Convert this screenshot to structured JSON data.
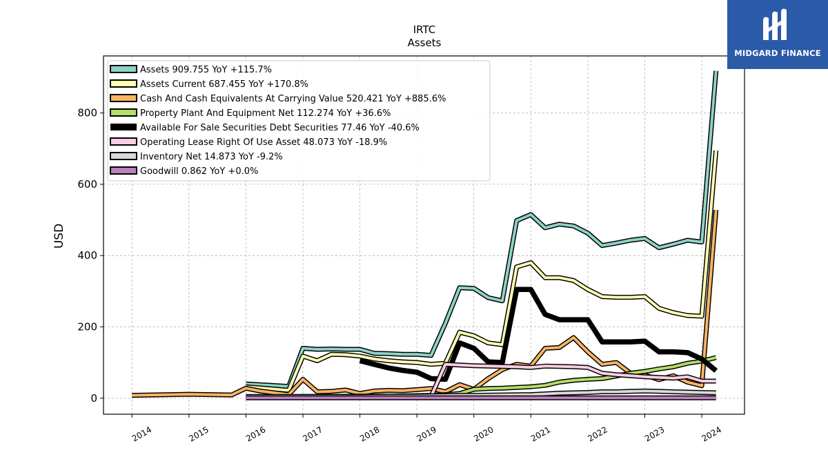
{
  "chart_data": {
    "type": "line",
    "title": "IRTC",
    "subtitle": "Assets",
    "xlabel": "",
    "ylabel": "USD",
    "xlim": [
      2013.5,
      2024.75
    ],
    "ylim": [
      -45,
      960
    ],
    "x_ticks": [
      "2014",
      "2015",
      "2016",
      "2017",
      "2018",
      "2019",
      "2020",
      "2021",
      "2022",
      "2023",
      "2024"
    ],
    "y_ticks": [
      0,
      200,
      400,
      600,
      800
    ],
    "grid": true,
    "legend_position": "top-left",
    "series": [
      {
        "name": "Assets  909.755 YoY +115.7%",
        "color": "#8dd3c7",
        "width": 4,
        "x": [
          2016.0,
          2016.75,
          2017.0,
          2017.25,
          2017.5,
          2017.75,
          2018.0,
          2018.25,
          2018.5,
          2018.75,
          2019.0,
          2019.25,
          2019.5,
          2019.75,
          2020.0,
          2020.25,
          2020.5,
          2020.75,
          2021.0,
          2021.25,
          2021.5,
          2021.75,
          2022.0,
          2022.25,
          2022.5,
          2022.75,
          2023.0,
          2023.25,
          2023.5,
          2023.75,
          2024.0,
          2024.25
        ],
        "y": [
          40,
          33,
          140,
          137,
          138,
          137,
          137,
          126,
          125,
          123,
          123,
          120,
          210,
          310,
          308,
          282,
          273,
          498,
          515,
          478,
          488,
          483,
          463,
          428,
          435,
          443,
          448,
          422,
          432,
          443,
          438,
          918
        ]
      },
      {
        "name": "Assets Current  687.455 YoY +170.8%",
        "color": "#ffffb3",
        "width": 4,
        "x": [
          2016.0,
          2016.75,
          2017.0,
          2017.25,
          2017.5,
          2017.75,
          2018.0,
          2018.25,
          2018.5,
          2018.75,
          2019.0,
          2019.25,
          2019.5,
          2019.75,
          2020.0,
          2020.25,
          2020.5,
          2020.75,
          2021.0,
          2021.25,
          2021.5,
          2021.75,
          2022.0,
          2022.25,
          2022.5,
          2022.75,
          2023.0,
          2023.25,
          2023.5,
          2023.75,
          2024.0,
          2024.25
        ],
        "y": [
          32,
          22,
          118,
          105,
          123,
          122,
          118,
          110,
          105,
          102,
          100,
          95,
          98,
          185,
          175,
          155,
          150,
          368,
          380,
          338,
          338,
          330,
          305,
          285,
          283,
          283,
          285,
          252,
          240,
          232,
          230,
          695
        ]
      },
      {
        "name": "Cash And Cash Equivalents At Carrying Value  520.421 YoY +885.6%",
        "color": "#fdb462",
        "width": 4,
        "x": [
          2014.0,
          2015.0,
          2015.75,
          2016.0,
          2016.25,
          2016.75,
          2017.0,
          2017.25,
          2017.5,
          2017.75,
          2018.0,
          2018.25,
          2018.5,
          2018.75,
          2019.0,
          2019.25,
          2019.5,
          2019.75,
          2020.0,
          2020.25,
          2020.5,
          2020.75,
          2021.0,
          2021.25,
          2021.5,
          2021.75,
          2022.0,
          2022.25,
          2022.5,
          2022.75,
          2023.0,
          2023.25,
          2023.5,
          2023.75,
          2024.0,
          2024.25
        ],
        "y": [
          8,
          11,
          9,
          28,
          20,
          10,
          53,
          18,
          19,
          23,
          13,
          20,
          22,
          21,
          24,
          27,
          18,
          38,
          25,
          55,
          80,
          95,
          90,
          140,
          142,
          170,
          130,
          95,
          100,
          70,
          65,
          52,
          63,
          45,
          35,
          528
        ]
      },
      {
        "name": "Property Plant And Equipment Net  112.274 YoY +36.6%",
        "color": "#b3de69",
        "width": 4,
        "x": [
          2016.0,
          2016.75,
          2017.0,
          2017.5,
          2018.0,
          2018.5,
          2019.0,
          2019.25,
          2019.5,
          2019.75,
          2020.0,
          2020.25,
          2020.5,
          2020.75,
          2021.0,
          2021.25,
          2021.5,
          2021.75,
          2022.0,
          2022.25,
          2022.5,
          2022.75,
          2023.0,
          2023.25,
          2023.5,
          2023.75,
          2024.0,
          2024.25
        ],
        "y": [
          4,
          4,
          5,
          5,
          6,
          6,
          7,
          8,
          10,
          13,
          25,
          27,
          28,
          30,
          32,
          36,
          45,
          50,
          53,
          55,
          62,
          70,
          75,
          82,
          88,
          98,
          104,
          114
        ]
      },
      {
        "name": "Available For Sale Securities Debt Securities  77.46 YoY -40.6%",
        "color": "#000000",
        "width": 7.5,
        "x": [
          2018.0,
          2018.25,
          2018.5,
          2018.75,
          2019.0,
          2019.25,
          2019.5,
          2019.75,
          2020.0,
          2020.25,
          2020.5,
          2020.75,
          2021.0,
          2021.25,
          2021.5,
          2021.75,
          2022.0,
          2022.25,
          2022.5,
          2022.75,
          2023.0,
          2023.25,
          2023.5,
          2023.75,
          2024.0,
          2024.25
        ],
        "y": [
          105,
          95,
          85,
          78,
          73,
          55,
          53,
          155,
          140,
          102,
          100,
          305,
          305,
          235,
          220,
          220,
          220,
          158,
          158,
          158,
          160,
          130,
          130,
          128,
          110,
          77
        ]
      },
      {
        "name": "Operating Lease Right Of Use Asset  48.073 YoY -18.9%",
        "color": "#fccde5",
        "width": 4,
        "x": [
          2019.0,
          2019.25,
          2019.5,
          2019.75,
          2020.0,
          2020.25,
          2020.5,
          2020.75,
          2021.0,
          2021.25,
          2021.5,
          2021.75,
          2022.0,
          2022.25,
          2022.5,
          2022.75,
          2023.0,
          2023.25,
          2023.5,
          2023.75,
          2024.0,
          2024.25
        ],
        "y": [
          5,
          5,
          95,
          93,
          91,
          90,
          89,
          88,
          86,
          90,
          89,
          88,
          86,
          70,
          66,
          63,
          60,
          58,
          56,
          60,
          48,
          48
        ]
      },
      {
        "name": "Inventory Net  14.873 YoY -9.2%",
        "color": "#d9d9d9",
        "width": 4,
        "x": [
          2016.0,
          2016.75,
          2017.0,
          2017.5,
          2018.0,
          2018.5,
          2019.0,
          2019.5,
          2020.0,
          2020.5,
          2021.0,
          2021.5,
          2022.0,
          2022.25,
          2022.5,
          2022.75,
          2023.0,
          2023.25,
          2023.5,
          2023.75,
          2024.0,
          2024.25
        ],
        "y": [
          5,
          5,
          5,
          5,
          5,
          6,
          6,
          7,
          8,
          9,
          10,
          14,
          16,
          18,
          18,
          19,
          20,
          19,
          18,
          17,
          16,
          15
        ]
      },
      {
        "name": "Goodwill  0.862 YoY +0.0%",
        "color": "#bc80bd",
        "width": 4,
        "x": [
          2016.0,
          2024.25
        ],
        "y": [
          1,
          1
        ]
      }
    ]
  },
  "brand": {
    "name": "MIDGARD FINANCE",
    "icon": "stylized-m-logo-icon",
    "background": "#2a5aa8"
  }
}
